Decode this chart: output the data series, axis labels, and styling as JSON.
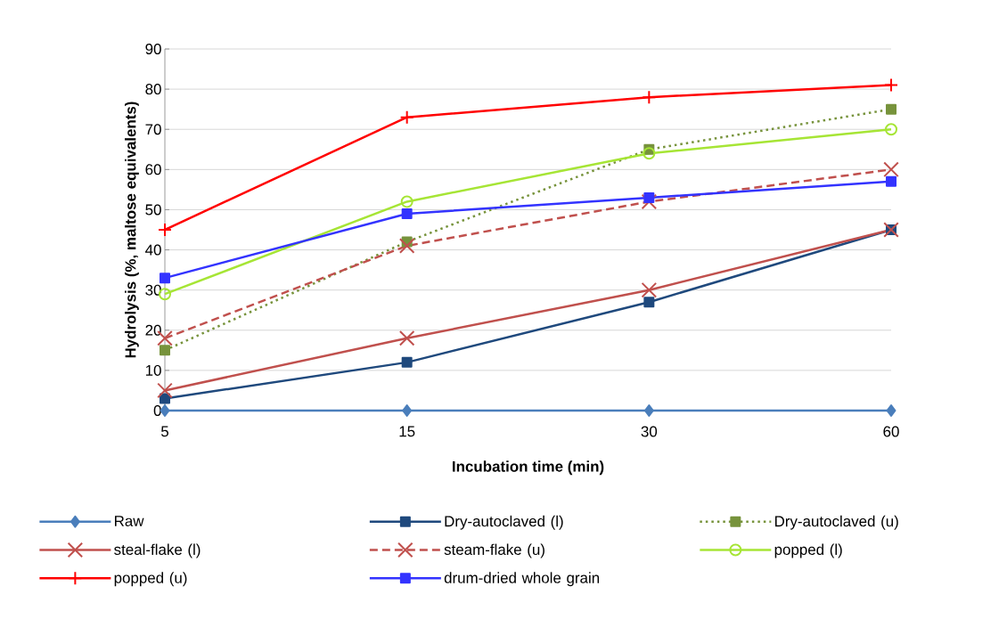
{
  "chart_data": {
    "type": "line",
    "xlabel": "Incubation time (min)",
    "ylabel": "Hydrolysis (%, maltose equivalents)",
    "categories": [
      "5",
      "15",
      "30",
      "60"
    ],
    "series": [
      {
        "name": "Raw",
        "color": "#4a7ebb",
        "marker": "diamond",
        "line_style": "solid",
        "values": [
          0,
          0,
          0,
          0
        ]
      },
      {
        "name": "Dry-autoclaved (l)",
        "color": "#1f497d",
        "marker": "square",
        "line_style": "solid",
        "values": [
          3,
          12,
          27,
          45
        ]
      },
      {
        "name": "Dry-autoclaved (u)",
        "color": "#77933c",
        "marker": "square",
        "line_style": "dotted",
        "values": [
          15,
          42,
          65,
          75
        ]
      },
      {
        "name": "steal-flake (l)",
        "color": "#c0504d",
        "marker": "cross",
        "line_style": "solid",
        "values": [
          5,
          18,
          30,
          45
        ]
      },
      {
        "name": "steam-flake (u)",
        "color": "#c0504d",
        "marker": "cross",
        "line_style": "dashed",
        "values": [
          18,
          41,
          52,
          60
        ]
      },
      {
        "name": "popped (l)",
        "color": "#a6e535",
        "marker": "circle",
        "line_style": "solid",
        "values": [
          29,
          52,
          64,
          70
        ]
      },
      {
        "name": "popped (u)",
        "color": "#ff0000",
        "marker": "plus",
        "line_style": "solid",
        "values": [
          45,
          73,
          78,
          81
        ]
      },
      {
        "name": "drum-dried whole grain",
        "color": "#3333ff",
        "marker": "square",
        "line_style": "solid",
        "values": [
          33,
          49,
          53,
          57
        ]
      }
    ],
    "ylim": [
      0,
      90
    ],
    "yticks": [
      0,
      10,
      20,
      30,
      40,
      50,
      60,
      70,
      80,
      90
    ],
    "grid": "y",
    "legend": "bottom"
  }
}
